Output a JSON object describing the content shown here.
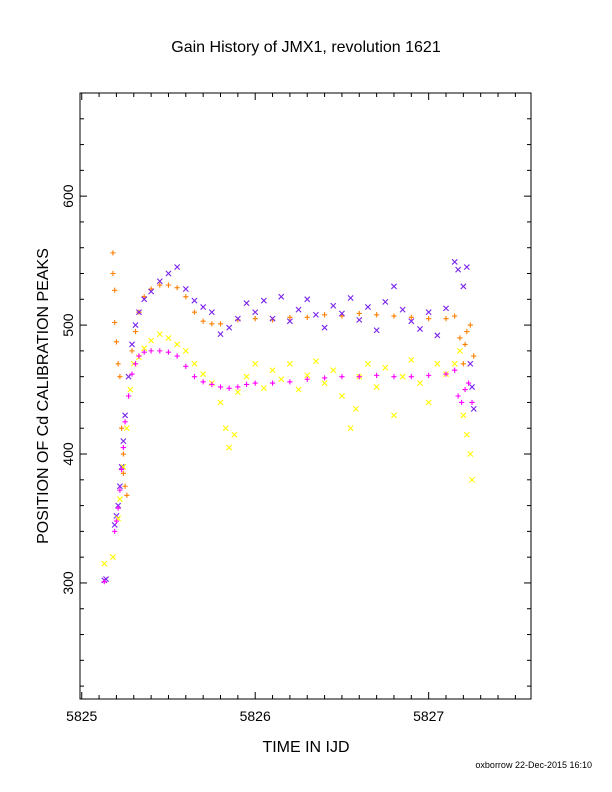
{
  "footer": "oxborrow 22-Dec-2015 16:10",
  "chart_data": {
    "type": "scatter",
    "title": "Gain History of JMX1, revolution 1621",
    "xlabel": "TIME IN IJD",
    "ylabel": "POSITION OF Cd CALIBRATION PEAKS",
    "xlim": [
      5824.99,
      5827.59
    ],
    "ylim": [
      210,
      680
    ],
    "xticks": [
      5825,
      5826,
      5827
    ],
    "xtick_labels": [
      "5825",
      "5826",
      "5827"
    ],
    "yticks": [
      300,
      400,
      500,
      600
    ],
    "ytick_labels": [
      "300",
      "400",
      "500",
      "600"
    ],
    "grid": false,
    "series": [
      {
        "color": "#ff7f00",
        "marker": "plus",
        "points": [
          [
            5825.18,
            556
          ],
          [
            5825.18,
            540
          ],
          [
            5825.19,
            527
          ],
          [
            5825.19,
            502
          ],
          [
            5825.2,
            487
          ],
          [
            5825.21,
            470
          ],
          [
            5825.22,
            460
          ],
          [
            5825.23,
            420
          ],
          [
            5825.24,
            400
          ],
          [
            5825.24,
            385
          ],
          [
            5825.25,
            375
          ],
          [
            5825.26,
            368
          ],
          [
            5825.27,
            445
          ],
          [
            5825.29,
            480
          ],
          [
            5825.31,
            495
          ],
          [
            5825.33,
            510
          ],
          [
            5825.36,
            522
          ],
          [
            5825.4,
            528
          ],
          [
            5825.45,
            531
          ],
          [
            5825.5,
            531
          ],
          [
            5825.55,
            529
          ],
          [
            5825.6,
            522
          ],
          [
            5825.65,
            510
          ],
          [
            5825.7,
            503
          ],
          [
            5825.75,
            501
          ],
          [
            5825.8,
            501
          ],
          [
            5825.9,
            504
          ],
          [
            5826.0,
            505
          ],
          [
            5826.1,
            504
          ],
          [
            5826.2,
            506
          ],
          [
            5826.3,
            506
          ],
          [
            5826.4,
            508
          ],
          [
            5826.5,
            507
          ],
          [
            5826.6,
            509
          ],
          [
            5826.7,
            508
          ],
          [
            5826.8,
            507
          ],
          [
            5826.9,
            506
          ],
          [
            5827.0,
            505
          ],
          [
            5827.1,
            505
          ],
          [
            5827.15,
            507
          ],
          [
            5827.18,
            490
          ],
          [
            5827.2,
            470
          ],
          [
            5827.21,
            485
          ],
          [
            5827.22,
            495
          ],
          [
            5827.24,
            500
          ],
          [
            5827.26,
            476
          ]
        ]
      },
      {
        "color": "#7a22ee",
        "marker": "cross",
        "points": [
          [
            5825.13,
            302
          ],
          [
            5825.14,
            303
          ],
          [
            5825.19,
            345
          ],
          [
            5825.2,
            352
          ],
          [
            5825.21,
            360
          ],
          [
            5825.22,
            375
          ],
          [
            5825.23,
            390
          ],
          [
            5825.24,
            410
          ],
          [
            5825.25,
            430
          ],
          [
            5825.27,
            460
          ],
          [
            5825.29,
            485
          ],
          [
            5825.31,
            500
          ],
          [
            5825.33,
            510
          ],
          [
            5825.36,
            520
          ],
          [
            5825.4,
            526
          ],
          [
            5825.45,
            534
          ],
          [
            5825.5,
            540
          ],
          [
            5825.55,
            545
          ],
          [
            5825.6,
            528
          ],
          [
            5825.65,
            519
          ],
          [
            5825.7,
            514
          ],
          [
            5825.75,
            510
          ],
          [
            5825.8,
            493
          ],
          [
            5825.85,
            498
          ],
          [
            5825.9,
            505
          ],
          [
            5825.95,
            517
          ],
          [
            5826.0,
            510
          ],
          [
            5826.05,
            519
          ],
          [
            5826.1,
            505
          ],
          [
            5826.15,
            522
          ],
          [
            5826.2,
            503
          ],
          [
            5826.25,
            512
          ],
          [
            5826.3,
            520
          ],
          [
            5826.35,
            508
          ],
          [
            5826.4,
            498
          ],
          [
            5826.45,
            515
          ],
          [
            5826.5,
            509
          ],
          [
            5826.55,
            521
          ],
          [
            5826.6,
            504
          ],
          [
            5826.65,
            514
          ],
          [
            5826.7,
            496
          ],
          [
            5826.75,
            518
          ],
          [
            5826.8,
            530
          ],
          [
            5826.85,
            512
          ],
          [
            5826.9,
            503
          ],
          [
            5826.95,
            497
          ],
          [
            5827.0,
            510
          ],
          [
            5827.05,
            492
          ],
          [
            5827.1,
            513
          ],
          [
            5827.15,
            549
          ],
          [
            5827.17,
            543
          ],
          [
            5827.2,
            530
          ],
          [
            5827.22,
            545
          ],
          [
            5827.24,
            470
          ],
          [
            5827.25,
            452
          ],
          [
            5827.26,
            435
          ]
        ]
      },
      {
        "color": "#ffff00",
        "marker": "cross",
        "points": [
          [
            5825.13,
            315
          ],
          [
            5825.18,
            320
          ],
          [
            5825.21,
            350
          ],
          [
            5825.22,
            365
          ],
          [
            5825.24,
            390
          ],
          [
            5825.26,
            420
          ],
          [
            5825.28,
            450
          ],
          [
            5825.3,
            470
          ],
          [
            5825.33,
            475
          ],
          [
            5825.36,
            482
          ],
          [
            5825.4,
            488
          ],
          [
            5825.45,
            493
          ],
          [
            5825.5,
            490
          ],
          [
            5825.55,
            485
          ],
          [
            5825.6,
            480
          ],
          [
            5825.65,
            470
          ],
          [
            5825.7,
            462
          ],
          [
            5825.75,
            455
          ],
          [
            5825.8,
            440
          ],
          [
            5825.83,
            420
          ],
          [
            5825.85,
            405
          ],
          [
            5825.88,
            415
          ],
          [
            5825.9,
            448
          ],
          [
            5825.95,
            460
          ],
          [
            5826.0,
            470
          ],
          [
            5826.05,
            451
          ],
          [
            5826.1,
            465
          ],
          [
            5826.15,
            458
          ],
          [
            5826.2,
            470
          ],
          [
            5826.25,
            450
          ],
          [
            5826.3,
            461
          ],
          [
            5826.35,
            472
          ],
          [
            5826.4,
            455
          ],
          [
            5826.45,
            465
          ],
          [
            5826.5,
            445
          ],
          [
            5826.55,
            420
          ],
          [
            5826.58,
            435
          ],
          [
            5826.6,
            460
          ],
          [
            5826.65,
            470
          ],
          [
            5826.7,
            452
          ],
          [
            5826.75,
            467
          ],
          [
            5826.8,
            430
          ],
          [
            5826.85,
            460
          ],
          [
            5826.9,
            473
          ],
          [
            5826.95,
            455
          ],
          [
            5827.0,
            440
          ],
          [
            5827.05,
            470
          ],
          [
            5827.1,
            462
          ],
          [
            5827.15,
            470
          ],
          [
            5827.18,
            480
          ],
          [
            5827.2,
            430
          ],
          [
            5827.22,
            415
          ],
          [
            5827.24,
            400
          ],
          [
            5827.25,
            380
          ]
        ]
      },
      {
        "color": "#ff00ff",
        "marker": "plus",
        "points": [
          [
            5825.13,
            301
          ],
          [
            5825.19,
            340
          ],
          [
            5825.2,
            348
          ],
          [
            5825.21,
            358
          ],
          [
            5825.22,
            372
          ],
          [
            5825.23,
            388
          ],
          [
            5825.24,
            405
          ],
          [
            5825.25,
            425
          ],
          [
            5825.27,
            445
          ],
          [
            5825.29,
            462
          ],
          [
            5825.31,
            470
          ],
          [
            5825.33,
            476
          ],
          [
            5825.36,
            479
          ],
          [
            5825.4,
            480
          ],
          [
            5825.45,
            480
          ],
          [
            5825.5,
            479
          ],
          [
            5825.55,
            476
          ],
          [
            5825.6,
            468
          ],
          [
            5825.65,
            460
          ],
          [
            5825.7,
            456
          ],
          [
            5825.75,
            454
          ],
          [
            5825.8,
            452
          ],
          [
            5825.85,
            451
          ],
          [
            5825.9,
            452
          ],
          [
            5825.95,
            454
          ],
          [
            5826.0,
            455
          ],
          [
            5826.1,
            455
          ],
          [
            5826.2,
            456
          ],
          [
            5826.3,
            458
          ],
          [
            5826.4,
            459
          ],
          [
            5826.5,
            460
          ],
          [
            5826.6,
            460
          ],
          [
            5826.7,
            461
          ],
          [
            5826.8,
            460
          ],
          [
            5826.9,
            460
          ],
          [
            5827.0,
            461
          ],
          [
            5827.1,
            462
          ],
          [
            5827.15,
            465
          ],
          [
            5827.17,
            445
          ],
          [
            5827.19,
            440
          ],
          [
            5827.21,
            450
          ],
          [
            5827.23,
            455
          ],
          [
            5827.25,
            440
          ]
        ]
      }
    ]
  }
}
